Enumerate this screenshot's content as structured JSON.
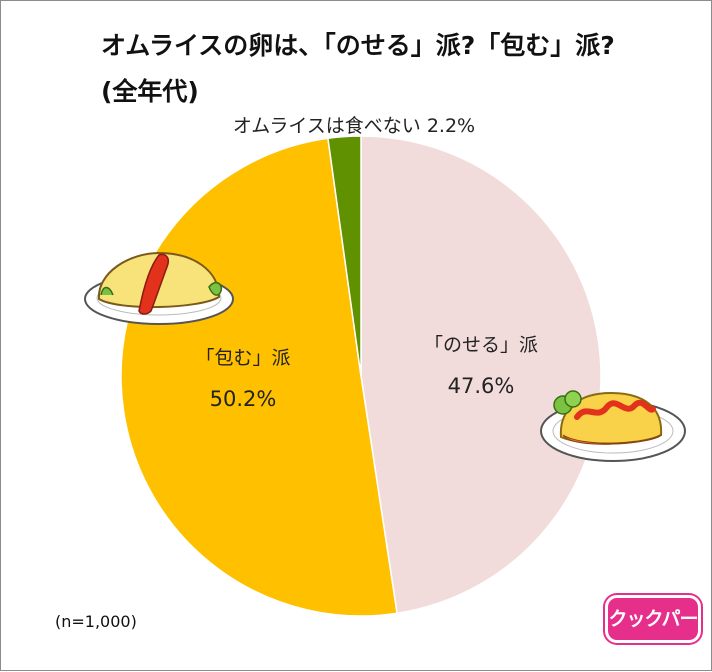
{
  "title": {
    "line1": "オムライスの卵は、「のせる」派?「包む」派?",
    "line2": "(全年代)"
  },
  "note": "(n=1,000)",
  "logo": {
    "text": "クックパー"
  },
  "chart_data": {
    "type": "pie",
    "start": "top",
    "direction": "clockwise",
    "slices": [
      {
        "label": "「のせる」派",
        "value": 47.6,
        "value_text": "47.6%",
        "color": "#f2dcdb"
      },
      {
        "label": "「包む」派",
        "value": 50.2,
        "value_text": "50.2%",
        "color": "#ffc000"
      },
      {
        "label": "オムライスは食べない",
        "value": 2.2,
        "value_text": "2.2%",
        "color": "#5f9100"
      }
    ]
  },
  "illustrations": [
    "omelette-rice-wrapped-icon",
    "omelette-rice-topped-icon"
  ]
}
